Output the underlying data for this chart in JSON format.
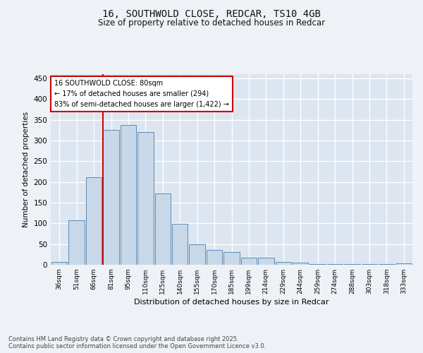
{
  "title": "16, SOUTHWOLD CLOSE, REDCAR, TS10 4GB",
  "subtitle": "Size of property relative to detached houses in Redcar",
  "xlabel": "Distribution of detached houses by size in Redcar",
  "ylabel": "Number of detached properties",
  "bar_labels": [
    "36sqm",
    "51sqm",
    "66sqm",
    "81sqm",
    "95sqm",
    "110sqm",
    "125sqm",
    "140sqm",
    "155sqm",
    "170sqm",
    "185sqm",
    "199sqm",
    "214sqm",
    "229sqm",
    "244sqm",
    "259sqm",
    "274sqm",
    "288sqm",
    "303sqm",
    "318sqm",
    "333sqm"
  ],
  "bar_values": [
    7,
    107,
    212,
    325,
    338,
    320,
    172,
    98,
    50,
    35,
    30,
    17,
    17,
    7,
    5,
    2,
    2,
    2,
    2,
    2,
    3
  ],
  "bar_color": "#c8d8e8",
  "bar_edgecolor": "#5f8ab4",
  "redline_bar_index": 3,
  "ylim": [
    0,
    460
  ],
  "yticks": [
    0,
    50,
    100,
    150,
    200,
    250,
    300,
    350,
    400,
    450
  ],
  "annotation_text": "16 SOUTHWOLD CLOSE: 80sqm\n← 17% of detached houses are smaller (294)\n83% of semi-detached houses are larger (1,422) →",
  "footer_text": "Contains HM Land Registry data © Crown copyright and database right 2025.\nContains public sector information licensed under the Open Government Licence v3.0.",
  "background_color": "#eef2f7",
  "plot_bg_color": "#dde6f0",
  "grid_color": "#ffffff",
  "redline_color": "#cc0000",
  "annotation_box_facecolor": "#ffffff",
  "annotation_box_edgecolor": "#cc0000"
}
